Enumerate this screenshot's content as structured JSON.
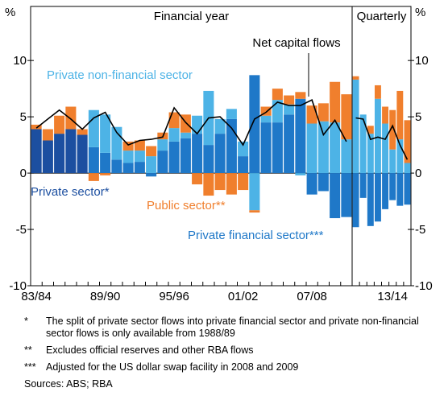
{
  "chart_data": [
    {
      "type": "bar",
      "stacked": true,
      "title": "Financial year",
      "y_label": "%",
      "categories": [
        "83/84",
        null,
        null,
        null,
        null,
        null,
        "89/90",
        null,
        null,
        null,
        null,
        null,
        "95/96",
        null,
        null,
        null,
        null,
        null,
        "01/02",
        null,
        null,
        null,
        null,
        null,
        "07/08",
        null,
        null,
        null
      ],
      "ylim": [
        -10,
        14.8
      ],
      "yticks": [
        -10,
        -5,
        0,
        5,
        10
      ],
      "series": [
        {
          "name": "Private sector*",
          "color": "#1c4fa0",
          "values": [
            3.9,
            2.9,
            3.5,
            3.9,
            3.4,
            null,
            null,
            null,
            null,
            null,
            null,
            null,
            null,
            null,
            null,
            null,
            null,
            null,
            null,
            null,
            null,
            null,
            null,
            null,
            null,
            null,
            null,
            null
          ]
        },
        {
          "name": "Private financial sector***",
          "color": "#1f78c8",
          "values": [
            null,
            null,
            null,
            null,
            null,
            2.3,
            1.8,
            1.2,
            0.9,
            1.0,
            -0.3,
            2.0,
            2.8,
            3.1,
            3.5,
            2.5,
            3.5,
            4.8,
            1.5,
            8.7,
            4.5,
            4.5,
            5.2,
            6.6,
            -1.9,
            -1.6,
            -4.0,
            -3.9
          ]
        },
        {
          "name": "Private non-financial sector",
          "color": "#4db3e6",
          "values": [
            null,
            null,
            null,
            null,
            null,
            3.3,
            3.4,
            2.9,
            1.1,
            1.0,
            1.5,
            1.0,
            1.2,
            0.5,
            1.6,
            4.8,
            1.3,
            0.9,
            1.3,
            -3.3,
            0.6,
            2.0,
            0.9,
            -0.2,
            4.4,
            4.6,
            4.5,
            3.0
          ]
        },
        {
          "name": "Public sector**",
          "color": "#f07f2d",
          "values": [
            0.4,
            1.0,
            1.6,
            2.0,
            0.5,
            -0.7,
            -0.2,
            0.0,
            0.8,
            0.9,
            0.9,
            0.6,
            1.4,
            1.6,
            -1.0,
            -2.0,
            -1.5,
            -1.9,
            -1.5,
            -0.2,
            0.8,
            1.0,
            0.8,
            0.6,
            1.6,
            1.6,
            3.6,
            4.0
          ]
        },
        {
          "name": "Net capital flows",
          "kind": "line",
          "color": "#000000",
          "values": [
            4.0,
            4.8,
            5.6,
            4.8,
            3.9,
            4.9,
            5.4,
            3.6,
            2.5,
            2.9,
            3.0,
            3.2,
            5.8,
            4.5,
            3.5,
            4.9,
            5.0,
            4.0,
            2.5,
            4.8,
            5.4,
            6.3,
            6.0,
            6.0,
            6.5,
            3.4,
            4.7,
            2.8
          ]
        }
      ]
    },
    {
      "type": "bar",
      "stacked": true,
      "title": "Quarterly",
      "y_label": "%",
      "categories": [
        null,
        null,
        null,
        null,
        null,
        "13/14",
        null,
        null
      ],
      "ylim": [
        -10,
        14.8
      ],
      "yticks": [
        -10,
        -5,
        0,
        5,
        10
      ],
      "series": [
        {
          "color": "#1f78c8",
          "values": [
            -4.8,
            -2.2,
            -4.7,
            -4.3,
            -3.2,
            -2.4,
            -2.9,
            -2.8
          ]
        },
        {
          "color": "#4db3e6",
          "values": [
            8.3,
            5.2,
            3.5,
            6.6,
            4.4,
            2.1,
            3.0,
            0.9
          ]
        },
        {
          "color": "#f07f2d",
          "values": [
            0.3,
            0.0,
            0.7,
            1.2,
            1.5,
            3.5,
            4.3,
            3.8
          ]
        },
        {
          "kind": "line",
          "color": "#000000",
          "values": [
            4.9,
            4.8,
            3.0,
            3.2,
            3.0,
            4.2,
            2.5,
            1.2
          ]
        }
      ]
    }
  ],
  "notes": [
    {
      "marker": "*",
      "text": "The split of private sector flows into private financial sector and private non-financial sector flows is only available from 1988/89"
    },
    {
      "marker": "**",
      "text": "Excludes official reserves and other RBA flows"
    },
    {
      "marker": "***",
      "text": "Adjusted for the US dollar swap facility in 2008 and 2009"
    }
  ],
  "sources": "Sources:   ABS; RBA"
}
